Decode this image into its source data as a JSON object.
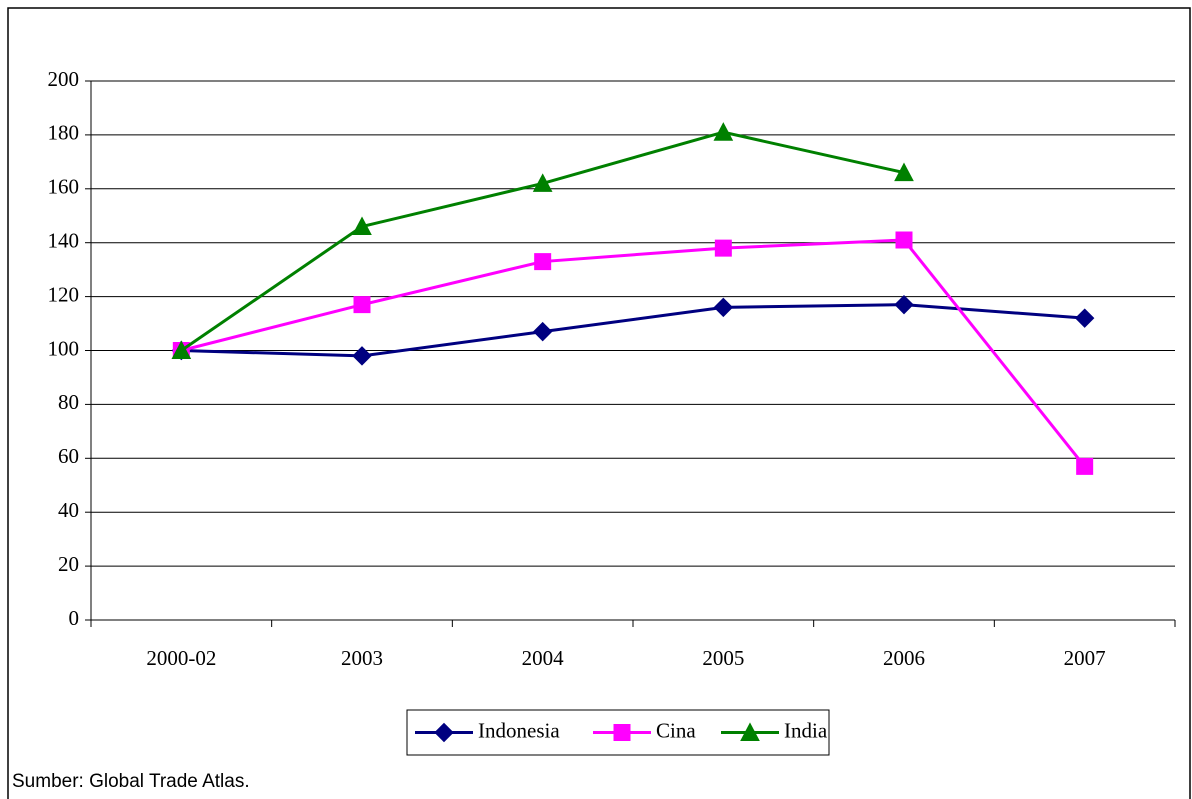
{
  "chart_data": {
    "type": "line",
    "categories": [
      "2000-02",
      "2003",
      "2004",
      "2005",
      "2006",
      "2007"
    ],
    "series": [
      {
        "name": "Indonesia",
        "color": "#000080",
        "marker": "diamond",
        "values": [
          100,
          98,
          107,
          116,
          117,
          112
        ]
      },
      {
        "name": "Cina",
        "color": "#ff00ff",
        "marker": "square",
        "values": [
          100,
          117,
          133,
          138,
          141,
          57
        ]
      },
      {
        "name": "India",
        "color": "#008000",
        "marker": "triangle",
        "values": [
          100,
          146,
          162,
          181,
          166,
          null
        ]
      }
    ],
    "ylim": [
      0,
      200
    ],
    "yticks": [
      0,
      20,
      40,
      60,
      80,
      100,
      120,
      140,
      160,
      180,
      200
    ],
    "grid": true,
    "legend": "bottom",
    "source": "Sumber: Global Trade Atlas."
  }
}
